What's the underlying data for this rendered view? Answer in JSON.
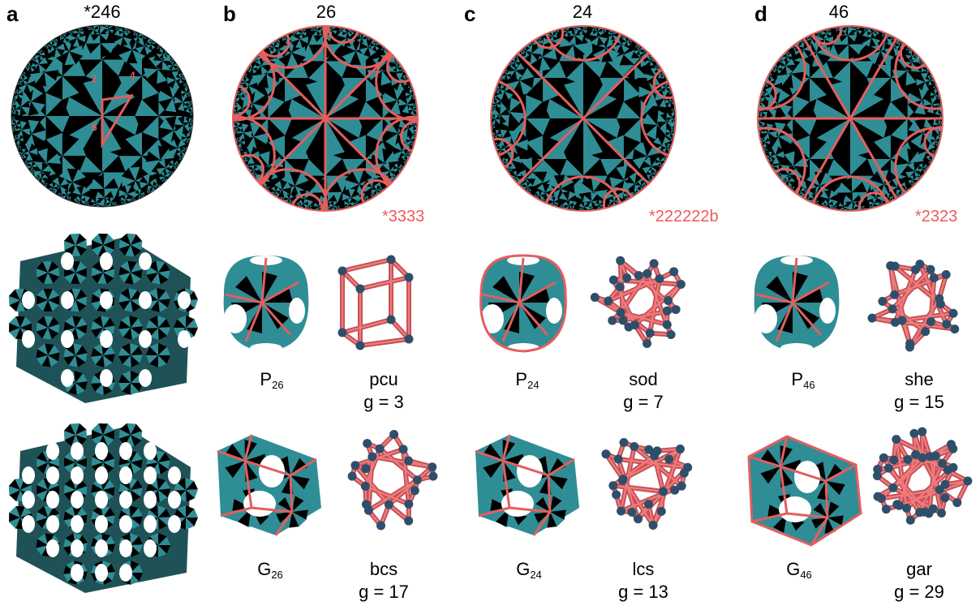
{
  "panels": {
    "a": {
      "letter": "a",
      "title": "*246"
    },
    "b": {
      "letter": "b",
      "title": "26",
      "orbifold": "*3333"
    },
    "c": {
      "letter": "c",
      "title": "24",
      "orbifold": "*222222b"
    },
    "d": {
      "letter": "d",
      "title": "46",
      "orbifold": "*2323"
    }
  },
  "triangle_vertices": [
    "2",
    "4",
    "6"
  ],
  "rows": {
    "b": {
      "p_surface": {
        "name": "P",
        "sub": "26"
      },
      "p_net": {
        "name": "pcu",
        "genus": "g = 3"
      },
      "g_surface": {
        "name": "G",
        "sub": "26"
      },
      "g_net": {
        "name": "bcs",
        "genus": "g = 17"
      }
    },
    "c": {
      "p_surface": {
        "name": "P",
        "sub": "24"
      },
      "p_net": {
        "name": "sod",
        "genus": "g = 7"
      },
      "g_surface": {
        "name": "G",
        "sub": "24"
      },
      "g_net": {
        "name": "lcs",
        "genus": "g = 13"
      }
    },
    "d": {
      "p_surface": {
        "name": "P",
        "sub": "46"
      },
      "p_net": {
        "name": "she",
        "genus": "g = 15"
      },
      "g_surface": {
        "name": "G",
        "sub": "46"
      },
      "g_net": {
        "name": "gar",
        "genus": "g = 29"
      }
    }
  },
  "colors": {
    "teal": "#2f8d95",
    "black": "#000000",
    "edge": "#e45e5e",
    "node": "#2e4f6a"
  }
}
